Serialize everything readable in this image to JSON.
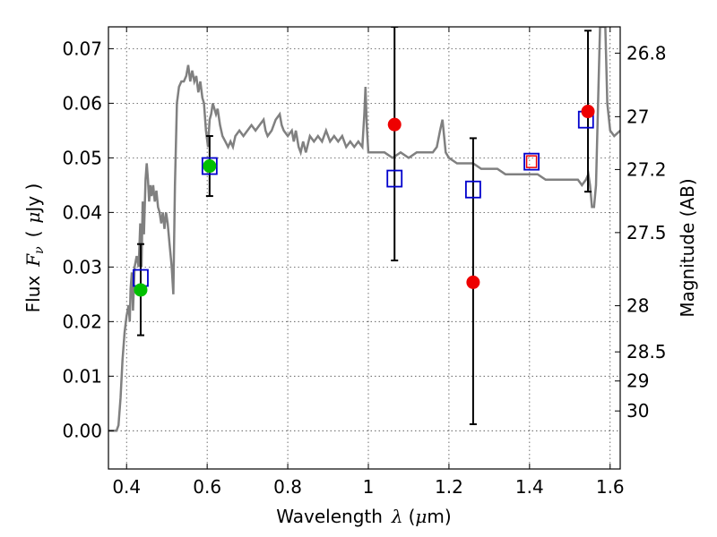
{
  "chart_data": {
    "type": "scatter",
    "xlabel": {
      "prefix": "Wavelength",
      "symbol": "λ",
      "unit_open": "(",
      "unit_mu": "μ",
      "unit_rest": "m)"
    },
    "ylabel": {
      "prefix": "Flux",
      "symbol_main": "F",
      "symbol_sub": "ν",
      "unit_open": "(",
      "unit_mu": "μ",
      "unit_rest": "Jy )"
    },
    "y2label": "Magnitude (AB)",
    "xlim": [
      0.355,
      1.625
    ],
    "ylim": [
      -0.007,
      0.074
    ],
    "xticks": [
      {
        "value": 0.4,
        "label": "0.4"
      },
      {
        "value": 0.6,
        "label": "0.6"
      },
      {
        "value": 0.8,
        "label": "0.8"
      },
      {
        "value": 1.0,
        "label": "1"
      },
      {
        "value": 1.2,
        "label": "1.2"
      },
      {
        "value": 1.4,
        "label": "1.4"
      },
      {
        "value": 1.6,
        "label": "1.6"
      }
    ],
    "yticks": [
      {
        "value": 0.0,
        "label": "0.00"
      },
      {
        "value": 0.01,
        "label": "0.01"
      },
      {
        "value": 0.02,
        "label": "0.02"
      },
      {
        "value": 0.03,
        "label": "0.03"
      },
      {
        "value": 0.04,
        "label": "0.04"
      },
      {
        "value": 0.05,
        "label": "0.05"
      },
      {
        "value": 0.06,
        "label": "0.06"
      },
      {
        "value": 0.07,
        "label": "0.07"
      }
    ],
    "magnitude_ticks": [
      {
        "mag": 26.8,
        "label": "26.8"
      },
      {
        "mag": 27.0,
        "label": "27"
      },
      {
        "mag": 27.2,
        "label": "27.2"
      },
      {
        "mag": 27.5,
        "label": "27.5"
      },
      {
        "mag": 28.0,
        "label": "28"
      },
      {
        "mag": 28.5,
        "label": "28.5"
      },
      {
        "mag": 29.0,
        "label": "29"
      },
      {
        "mag": 30.0,
        "label": "30"
      }
    ],
    "grid": true,
    "colors": {
      "model": "#808080",
      "model_squares": "#0000cc",
      "detections_green": "#00c000",
      "detections_red": "#ee0000",
      "red_square": "#ee0000",
      "errorbar": "#000000"
    },
    "model_sed": [
      [
        0.355,
        0.0
      ],
      [
        0.375,
        0.0
      ],
      [
        0.38,
        0.001
      ],
      [
        0.385,
        0.006
      ],
      [
        0.39,
        0.013
      ],
      [
        0.395,
        0.018
      ],
      [
        0.4,
        0.021
      ],
      [
        0.405,
        0.023
      ],
      [
        0.408,
        0.02
      ],
      [
        0.41,
        0.026
      ],
      [
        0.413,
        0.029
      ],
      [
        0.416,
        0.022
      ],
      [
        0.42,
        0.03
      ],
      [
        0.425,
        0.032
      ],
      [
        0.43,
        0.03
      ],
      [
        0.434,
        0.038
      ],
      [
        0.437,
        0.03
      ],
      [
        0.44,
        0.042
      ],
      [
        0.443,
        0.036
      ],
      [
        0.447,
        0.046
      ],
      [
        0.45,
        0.049
      ],
      [
        0.453,
        0.046
      ],
      [
        0.456,
        0.042
      ],
      [
        0.459,
        0.045
      ],
      [
        0.462,
        0.043
      ],
      [
        0.466,
        0.045
      ],
      [
        0.47,
        0.042
      ],
      [
        0.474,
        0.044
      ],
      [
        0.478,
        0.041
      ],
      [
        0.482,
        0.04
      ],
      [
        0.486,
        0.038
      ],
      [
        0.49,
        0.04
      ],
      [
        0.494,
        0.037
      ],
      [
        0.498,
        0.04
      ],
      [
        0.502,
        0.038
      ],
      [
        0.507,
        0.034
      ],
      [
        0.512,
        0.03
      ],
      [
        0.516,
        0.025
      ],
      [
        0.52,
        0.045
      ],
      [
        0.525,
        0.06
      ],
      [
        0.53,
        0.063
      ],
      [
        0.536,
        0.064
      ],
      [
        0.542,
        0.064
      ],
      [
        0.548,
        0.065
      ],
      [
        0.553,
        0.067
      ],
      [
        0.558,
        0.064
      ],
      [
        0.563,
        0.066
      ],
      [
        0.568,
        0.064
      ],
      [
        0.573,
        0.065
      ],
      [
        0.578,
        0.062
      ],
      [
        0.583,
        0.064
      ],
      [
        0.588,
        0.061
      ],
      [
        0.592,
        0.06
      ],
      [
        0.597,
        0.055
      ],
      [
        0.602,
        0.052
      ],
      [
        0.606,
        0.057
      ],
      [
        0.61,
        0.058
      ],
      [
        0.614,
        0.06
      ],
      [
        0.618,
        0.059
      ],
      [
        0.622,
        0.058
      ],
      [
        0.626,
        0.059
      ],
      [
        0.632,
        0.056
      ],
      [
        0.638,
        0.054
      ],
      [
        0.645,
        0.053
      ],
      [
        0.652,
        0.052
      ],
      [
        0.658,
        0.053
      ],
      [
        0.664,
        0.052
      ],
      [
        0.67,
        0.054
      ],
      [
        0.68,
        0.055
      ],
      [
        0.69,
        0.054
      ],
      [
        0.7,
        0.055
      ],
      [
        0.71,
        0.056
      ],
      [
        0.72,
        0.055
      ],
      [
        0.73,
        0.056
      ],
      [
        0.74,
        0.057
      ],
      [
        0.745,
        0.055
      ],
      [
        0.75,
        0.054
      ],
      [
        0.76,
        0.055
      ],
      [
        0.77,
        0.057
      ],
      [
        0.78,
        0.058
      ],
      [
        0.785,
        0.056
      ],
      [
        0.79,
        0.055
      ],
      [
        0.8,
        0.054
      ],
      [
        0.81,
        0.055
      ],
      [
        0.815,
        0.053
      ],
      [
        0.82,
        0.055
      ],
      [
        0.827,
        0.052
      ],
      [
        0.832,
        0.051
      ],
      [
        0.838,
        0.053
      ],
      [
        0.845,
        0.051
      ],
      [
        0.855,
        0.054
      ],
      [
        0.865,
        0.053
      ],
      [
        0.875,
        0.054
      ],
      [
        0.885,
        0.053
      ],
      [
        0.895,
        0.055
      ],
      [
        0.905,
        0.053
      ],
      [
        0.915,
        0.054
      ],
      [
        0.925,
        0.053
      ],
      [
        0.935,
        0.054
      ],
      [
        0.945,
        0.052
      ],
      [
        0.955,
        0.053
      ],
      [
        0.965,
        0.052
      ],
      [
        0.975,
        0.053
      ],
      [
        0.985,
        0.052
      ],
      [
        0.99,
        0.058
      ],
      [
        0.993,
        0.063
      ],
      [
        0.996,
        0.056
      ],
      [
        1.0,
        0.051
      ],
      [
        1.02,
        0.051
      ],
      [
        1.04,
        0.051
      ],
      [
        1.06,
        0.05
      ],
      [
        1.08,
        0.051
      ],
      [
        1.1,
        0.05
      ],
      [
        1.12,
        0.051
      ],
      [
        1.14,
        0.051
      ],
      [
        1.16,
        0.051
      ],
      [
        1.17,
        0.052
      ],
      [
        1.178,
        0.055
      ],
      [
        1.184,
        0.057
      ],
      [
        1.188,
        0.054
      ],
      [
        1.192,
        0.051
      ],
      [
        1.2,
        0.05
      ],
      [
        1.22,
        0.049
      ],
      [
        1.24,
        0.049
      ],
      [
        1.26,
        0.049
      ],
      [
        1.28,
        0.048
      ],
      [
        1.3,
        0.048
      ],
      [
        1.32,
        0.048
      ],
      [
        1.34,
        0.047
      ],
      [
        1.36,
        0.047
      ],
      [
        1.38,
        0.047
      ],
      [
        1.4,
        0.047
      ],
      [
        1.42,
        0.047
      ],
      [
        1.44,
        0.046
      ],
      [
        1.46,
        0.046
      ],
      [
        1.48,
        0.046
      ],
      [
        1.5,
        0.046
      ],
      [
        1.52,
        0.046
      ],
      [
        1.53,
        0.045
      ],
      [
        1.54,
        0.046
      ],
      [
        1.546,
        0.047
      ],
      [
        1.55,
        0.045
      ],
      [
        1.555,
        0.041
      ],
      [
        1.56,
        0.041
      ],
      [
        1.565,
        0.045
      ],
      [
        1.57,
        0.06
      ],
      [
        1.575,
        0.074
      ],
      [
        1.588,
        0.074
      ],
      [
        1.593,
        0.06
      ],
      [
        1.6,
        0.055
      ],
      [
        1.61,
        0.054
      ],
      [
        1.625,
        0.055
      ]
    ],
    "model_squares": [
      {
        "x": 0.435,
        "y": 0.028
      },
      {
        "x": 0.606,
        "y": 0.0485
      },
      {
        "x": 1.065,
        "y": 0.0462
      },
      {
        "x": 1.26,
        "y": 0.0442
      },
      {
        "x": 1.54,
        "y": 0.057
      }
    ],
    "red_square": [
      {
        "x": 1.405,
        "y": 0.0493
      }
    ],
    "green_points": [
      {
        "x": 0.435,
        "y": 0.0258,
        "yerr_low": 0.0175,
        "yerr_high": 0.0342
      },
      {
        "x": 0.606,
        "y": 0.0485,
        "yerr_low": 0.043,
        "yerr_high": 0.054
      }
    ],
    "red_points": [
      {
        "x": 1.065,
        "y": 0.0561,
        "yerr_low": 0.0312,
        "yerr_high": 0.074
      },
      {
        "x": 1.26,
        "y": 0.0272,
        "yerr_low": 0.0012,
        "yerr_high": 0.0536
      },
      {
        "x": 1.545,
        "y": 0.0585,
        "yerr_low": 0.0438,
        "yerr_high": 0.0733
      }
    ]
  }
}
